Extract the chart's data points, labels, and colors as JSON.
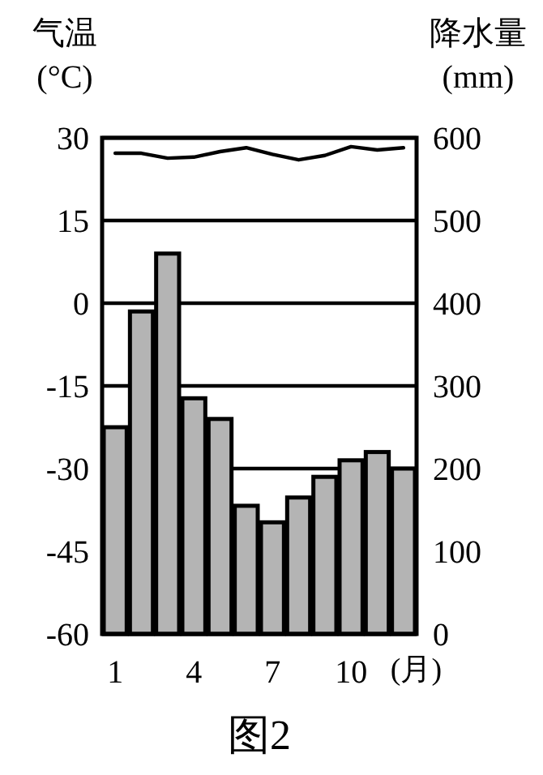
{
  "chart_data": {
    "type": "bar",
    "title": "图2",
    "xlabel": "(月)",
    "ylabel": "气温\n(°C)",
    "y2label": "降水量\n(mm)",
    "categories": [
      "1",
      null,
      null,
      "4",
      null,
      null,
      "7",
      null,
      null,
      "10",
      null,
      null
    ],
    "series": [
      {
        "axis": "y2",
        "color": "#b4b4b4",
        "values": [
          250,
          390,
          460,
          285,
          260,
          155,
          135,
          165,
          190,
          210,
          220,
          200
        ]
      },
      {
        "type": "line",
        "axis": "y",
        "color": "#000000",
        "values": [
          27.2,
          27.2,
          26.3,
          26.5,
          27.5,
          28.2,
          27,
          26,
          26.8,
          28.4,
          27.8,
          28.2
        ]
      }
    ],
    "ylim": [
      -60,
      30
    ],
    "yticks": [
      -60,
      -45,
      -30,
      -15,
      0,
      15,
      30
    ],
    "y2lim": [
      0,
      600
    ],
    "y2ticks": [
      0,
      100,
      200,
      300,
      400,
      500,
      600
    ],
    "grid": "y",
    "marker": "none",
    "line_style": "solid"
  }
}
